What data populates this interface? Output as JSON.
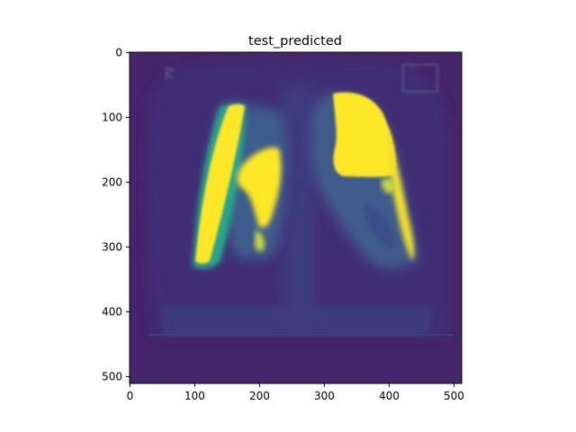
{
  "chart_data": {
    "type": "heatmap",
    "title": "test_predicted",
    "xlabel": "",
    "ylabel": "",
    "xlim": [
      0,
      512
    ],
    "ylim": [
      512,
      0
    ],
    "y_axis_inverted": true,
    "grid": false,
    "legend": "none",
    "colormap": "viridis",
    "x_ticks": [
      0,
      100,
      200,
      300,
      400,
      500
    ],
    "y_ticks": [
      0,
      100,
      200,
      300,
      400,
      500
    ],
    "image_size": [
      512,
      512
    ],
    "colors": {
      "background_low": "#45256b",
      "body_mid": "#3c4a87",
      "high": "#fde725",
      "transition": "#2aa58c"
    }
  }
}
